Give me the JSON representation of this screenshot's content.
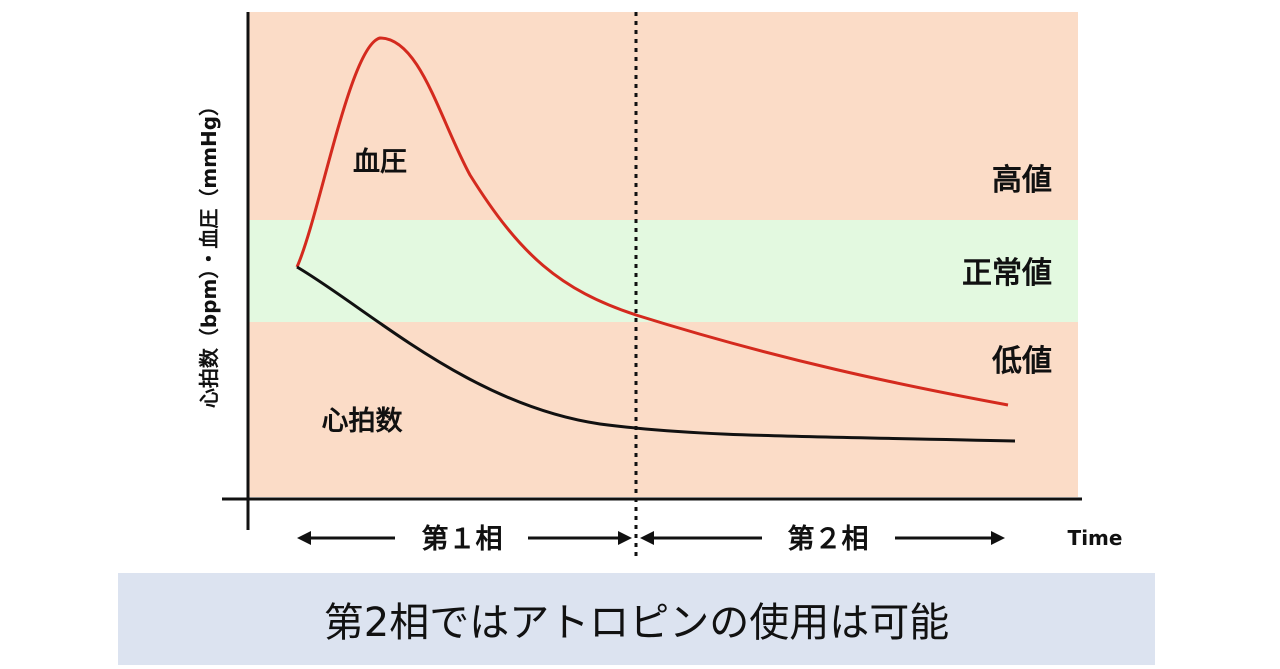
{
  "chart_data": {
    "type": "line",
    "ylabel": "心拍数（bpm）・血圧（mmHg）",
    "xlabel": "Time",
    "zones": [
      {
        "label": "高値",
        "color": "#fbdcc7"
      },
      {
        "label": "正常値",
        "color": "#e3f9e0"
      },
      {
        "label": "低値",
        "color": "#fbdcc7"
      }
    ],
    "phases": [
      {
        "label": "第１相"
      },
      {
        "label": "第２相"
      }
    ],
    "series": [
      {
        "name": "血圧",
        "color": "#d42a1e"
      },
      {
        "name": "心拍数",
        "color": "#111111"
      }
    ]
  },
  "caption": "第2相ではアトロピンの使用は可能"
}
